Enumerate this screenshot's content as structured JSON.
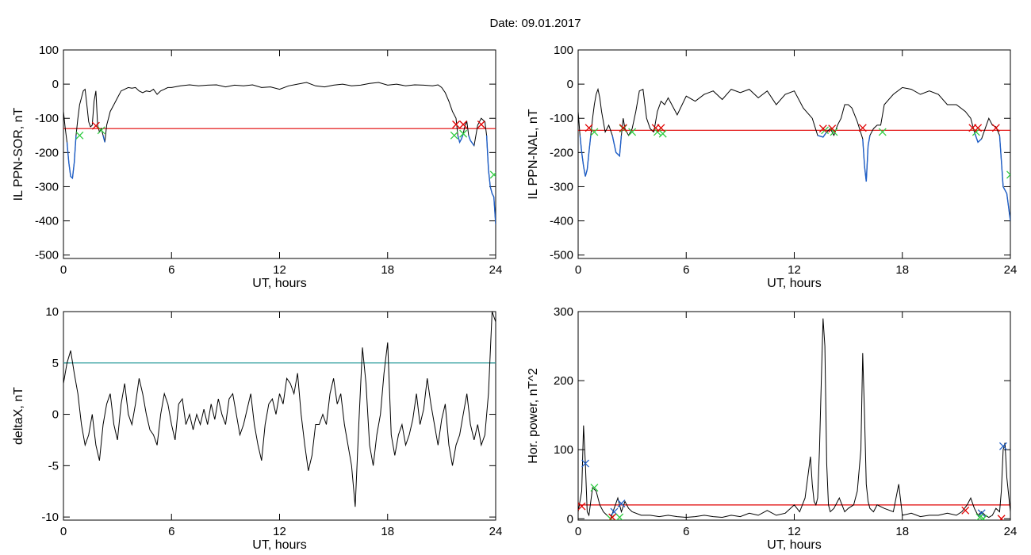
{
  "figure": {
    "title": "Date:  09.01.2017"
  },
  "chart_data": [
    {
      "type": "line",
      "id": "sor",
      "xlabel": "UT, hours",
      "ylabel": "IL PPN-SOR, nT",
      "xlim": [
        0,
        24
      ],
      "ylim": [
        -510,
        100
      ],
      "xticks": [
        0,
        6,
        12,
        18,
        24
      ],
      "yticks": [
        100,
        0,
        -100,
        -200,
        -300,
        -400,
        -500
      ],
      "grid": false,
      "colors": {
        "line": "#000000",
        "substorm": "#1f5fc8",
        "threshold": "#e00000"
      },
      "threshold": -130,
      "x": [
        0,
        0.1,
        0.2,
        0.3,
        0.4,
        0.5,
        0.6,
        0.7,
        0.8,
        0.9,
        1.0,
        1.1,
        1.2,
        1.3,
        1.4,
        1.5,
        1.6,
        1.7,
        1.8,
        1.9,
        2.0,
        2.1,
        2.2,
        2.3,
        2.4,
        2.5,
        2.6,
        2.8,
        3.0,
        3.2,
        3.4,
        3.6,
        3.8,
        4.0,
        4.2,
        4.4,
        4.6,
        4.8,
        5.0,
        5.2,
        5.4,
        5.6,
        5.8,
        6.0,
        6.5,
        7.0,
        7.5,
        8.0,
        8.5,
        9.0,
        9.5,
        10.0,
        10.5,
        11.0,
        11.5,
        12.0,
        12.5,
        13.0,
        13.5,
        14.0,
        14.5,
        15.0,
        15.5,
        16.0,
        16.5,
        17.0,
        17.5,
        18.0,
        18.5,
        19.0,
        19.5,
        20.0,
        20.5,
        20.8,
        21.0,
        21.2,
        21.4,
        21.6,
        21.8,
        21.9,
        22.0,
        22.1,
        22.2,
        22.3,
        22.4,
        22.5,
        22.6,
        22.8,
        23.0,
        23.2,
        23.4,
        23.5,
        23.6,
        23.7,
        23.8,
        23.9,
        24.0
      ],
      "y": [
        -80,
        -130,
        -170,
        -230,
        -270,
        -275,
        -230,
        -150,
        -100,
        -60,
        -40,
        -20,
        -15,
        -60,
        -110,
        -125,
        -120,
        -50,
        -20,
        -120,
        -140,
        -130,
        -150,
        -170,
        -120,
        -100,
        -80,
        -60,
        -40,
        -20,
        -15,
        -10,
        -12,
        -10,
        -20,
        -25,
        -20,
        -22,
        -15,
        -30,
        -20,
        -15,
        -10,
        -10,
        -5,
        -2,
        -5,
        -3,
        -2,
        -8,
        -3,
        -5,
        -2,
        -10,
        -8,
        -15,
        -5,
        0,
        5,
        -5,
        -8,
        -3,
        0,
        -5,
        -3,
        2,
        5,
        -3,
        0,
        -5,
        -2,
        -3,
        -5,
        -2,
        -10,
        -25,
        -50,
        -80,
        -100,
        -150,
        -170,
        -160,
        -145,
        -120,
        -110,
        -150,
        -165,
        -180,
        -120,
        -100,
        -110,
        -150,
        -250,
        -300,
        -320,
        -330,
        -410
      ],
      "markers": {
        "green": [
          [
            0.9,
            -150
          ],
          [
            2.1,
            -135
          ],
          [
            21.7,
            -150
          ],
          [
            22.2,
            -145
          ],
          [
            23.9,
            -265
          ]
        ],
        "red": [
          [
            1.8,
            -122
          ],
          [
            21.8,
            -118
          ],
          [
            22.2,
            -118
          ],
          [
            23.2,
            -118
          ]
        ]
      }
    },
    {
      "type": "line",
      "id": "nal",
      "xlabel": "UT, hours",
      "ylabel": "IL PPN-NAL, nT",
      "xlim": [
        0,
        24
      ],
      "ylim": [
        -510,
        100
      ],
      "xticks": [
        0,
        6,
        12,
        18,
        24
      ],
      "yticks": [
        100,
        0,
        -100,
        -200,
        -300,
        -400,
        -500
      ],
      "grid": false,
      "colors": {
        "line": "#000000",
        "substorm": "#1f5fc8",
        "threshold": "#e00000"
      },
      "threshold": -135,
      "x": [
        0,
        0.1,
        0.2,
        0.3,
        0.4,
        0.5,
        0.6,
        0.7,
        0.8,
        0.9,
        1.0,
        1.1,
        1.2,
        1.3,
        1.5,
        1.7,
        1.9,
        2.1,
        2.3,
        2.4,
        2.5,
        2.6,
        2.8,
        3.0,
        3.2,
        3.4,
        3.6,
        3.8,
        4.0,
        4.2,
        4.4,
        4.6,
        4.8,
        5.0,
        5.5,
        6.0,
        6.5,
        7.0,
        7.5,
        8.0,
        8.5,
        9.0,
        9.5,
        10.0,
        10.5,
        11.0,
        11.5,
        12.0,
        12.5,
        13.0,
        13.3,
        13.6,
        13.8,
        14.0,
        14.2,
        14.4,
        14.6,
        14.8,
        15.0,
        15.2,
        15.5,
        15.8,
        15.9,
        16.0,
        16.1,
        16.2,
        16.4,
        16.6,
        16.8,
        17.0,
        17.5,
        18.0,
        18.5,
        19.0,
        19.5,
        20.0,
        20.5,
        21.0,
        21.5,
        21.8,
        22.0,
        22.2,
        22.4,
        22.6,
        22.8,
        23.0,
        23.2,
        23.4,
        23.6,
        23.8,
        24.0
      ],
      "y": [
        -80,
        -150,
        -200,
        -240,
        -270,
        -250,
        -200,
        -150,
        -100,
        -60,
        -30,
        -15,
        -40,
        -80,
        -140,
        -120,
        -150,
        -200,
        -210,
        -150,
        -100,
        -130,
        -150,
        -130,
        -80,
        -20,
        -15,
        -100,
        -130,
        -140,
        -80,
        -50,
        -60,
        -40,
        -90,
        -35,
        -50,
        -30,
        -20,
        -45,
        -15,
        -25,
        -15,
        -40,
        -20,
        -60,
        -30,
        -20,
        -70,
        -100,
        -150,
        -155,
        -140,
        -130,
        -150,
        -120,
        -100,
        -60,
        -60,
        -70,
        -110,
        -160,
        -240,
        -285,
        -180,
        -150,
        -130,
        -120,
        -120,
        -60,
        -30,
        -10,
        -15,
        -30,
        -20,
        -30,
        -60,
        -60,
        -80,
        -100,
        -140,
        -170,
        -160,
        -130,
        -100,
        -120,
        -125,
        -150,
        -300,
        -320,
        -400
      ],
      "markers": {
        "green": [
          [
            0.9,
            -140
          ],
          [
            2.5,
            -130
          ],
          [
            3.0,
            -140
          ],
          [
            4.4,
            -140
          ],
          [
            4.7,
            -145
          ],
          [
            13.7,
            -135
          ],
          [
            14.2,
            -140
          ],
          [
            16.9,
            -140
          ],
          [
            22.1,
            -140
          ],
          [
            24.0,
            -265
          ]
        ],
        "red": [
          [
            0.6,
            -128
          ],
          [
            2.5,
            -128
          ],
          [
            4.3,
            -128
          ],
          [
            4.6,
            -128
          ],
          [
            13.6,
            -130
          ],
          [
            14.1,
            -130
          ],
          [
            15.8,
            -128
          ],
          [
            21.9,
            -128
          ],
          [
            22.2,
            -128
          ],
          [
            23.2,
            -128
          ]
        ]
      }
    },
    {
      "type": "line",
      "id": "deltax",
      "xlabel": "UT, hours",
      "ylabel": "deltaX, nT",
      "xlim": [
        0,
        24
      ],
      "ylim": [
        -10.3,
        10
      ],
      "xticks": [
        0,
        6,
        12,
        18,
        24
      ],
      "yticks": [
        10,
        5,
        0,
        -5,
        -10
      ],
      "grid": false,
      "colors": {
        "line": "#000000",
        "threshold": "#2e9e9e"
      },
      "threshold": 5,
      "x": [
        0,
        0.2,
        0.4,
        0.6,
        0.8,
        1.0,
        1.2,
        1.4,
        1.6,
        1.8,
        2.0,
        2.2,
        2.4,
        2.6,
        2.8,
        3.0,
        3.2,
        3.4,
        3.6,
        3.8,
        4.0,
        4.2,
        4.4,
        4.6,
        4.8,
        5.0,
        5.2,
        5.4,
        5.6,
        5.8,
        6.0,
        6.2,
        6.4,
        6.6,
        6.8,
        7.0,
        7.2,
        7.4,
        7.6,
        7.8,
        8.0,
        8.2,
        8.4,
        8.6,
        8.8,
        9.0,
        9.2,
        9.4,
        9.6,
        9.8,
        10.0,
        10.2,
        10.4,
        10.6,
        10.8,
        11.0,
        11.2,
        11.4,
        11.6,
        11.8,
        12.0,
        12.2,
        12.4,
        12.6,
        12.8,
        13.0,
        13.2,
        13.4,
        13.6,
        13.8,
        14.0,
        14.2,
        14.4,
        14.6,
        14.8,
        15.0,
        15.2,
        15.4,
        15.6,
        15.8,
        16.0,
        16.2,
        16.4,
        16.6,
        16.8,
        17.0,
        17.2,
        17.4,
        17.6,
        17.8,
        18.0,
        18.2,
        18.4,
        18.6,
        18.8,
        19.0,
        19.2,
        19.4,
        19.6,
        19.8,
        20.0,
        20.2,
        20.4,
        20.6,
        20.8,
        21.0,
        21.2,
        21.4,
        21.6,
        21.8,
        22.0,
        22.2,
        22.4,
        22.6,
        22.8,
        23.0,
        23.2,
        23.4,
        23.6,
        23.8,
        24.0
      ],
      "y": [
        3,
        5,
        6.2,
        4,
        2,
        -1,
        -3,
        -2,
        0,
        -3,
        -4.5,
        -1,
        1,
        2,
        -1,
        -2.5,
        1,
        3,
        0,
        -1,
        1,
        3.5,
        2,
        0,
        -1.5,
        -2,
        -3,
        0,
        2,
        1,
        -1,
        -2.5,
        1,
        1.5,
        -1,
        0,
        -1.5,
        0,
        -1,
        0.5,
        -1,
        1,
        -0.5,
        1.5,
        0,
        -1,
        1.5,
        2,
        0,
        -2,
        -1,
        0.5,
        2,
        -1,
        -3,
        -4.5,
        -1,
        1,
        1.5,
        0,
        2,
        1,
        3.5,
        3,
        2,
        4,
        0,
        -3,
        -5.5,
        -4,
        -1,
        -1,
        0,
        -1,
        2,
        3.5,
        1,
        2,
        -1,
        -3,
        -5,
        -9,
        -1,
        6.5,
        3,
        -3,
        -5,
        -2,
        0,
        4,
        7,
        -2,
        -4,
        -2,
        -1,
        -3,
        -2,
        -0.5,
        2,
        -1,
        0.5,
        3.5,
        1,
        -1,
        -3,
        -0.5,
        1,
        -3,
        -5,
        -3,
        -2,
        0,
        2,
        -1,
        -2.5,
        -1,
        -3,
        -2,
        2,
        10,
        9
      ]
    },
    {
      "type": "line",
      "id": "power",
      "xlabel": "UT, hours",
      "ylabel": "Hor. power, nT^2",
      "xlim": [
        0,
        24
      ],
      "ylim": [
        -2,
        300
      ],
      "xticks": [
        0,
        6,
        12,
        18,
        24
      ],
      "yticks": [
        300,
        200,
        100,
        0
      ],
      "grid": false,
      "colors": {
        "line": "#000000",
        "threshold": "#e00000"
      },
      "threshold": 20,
      "x": [
        0,
        0.2,
        0.3,
        0.4,
        0.5,
        0.6,
        0.8,
        1.0,
        1.2,
        1.4,
        1.6,
        1.8,
        2.0,
        2.2,
        2.4,
        2.6,
        2.8,
        3.0,
        3.5,
        4.0,
        4.5,
        5.0,
        5.5,
        6.0,
        6.5,
        7.0,
        7.5,
        8.0,
        8.5,
        9.0,
        9.5,
        10.0,
        10.5,
        11.0,
        11.5,
        12.0,
        12.3,
        12.6,
        12.9,
        13.0,
        13.1,
        13.2,
        13.3,
        13.4,
        13.5,
        13.6,
        13.7,
        13.8,
        13.9,
        14.0,
        14.2,
        14.5,
        14.8,
        15.0,
        15.3,
        15.5,
        15.7,
        15.8,
        15.9,
        16.0,
        16.1,
        16.2,
        16.4,
        16.6,
        17.0,
        17.5,
        17.8,
        18.0,
        18.5,
        19.0,
        19.5,
        20.0,
        20.5,
        21.0,
        21.3,
        21.6,
        21.8,
        22.0,
        22.2,
        22.4,
        22.6,
        22.8,
        23.0,
        23.2,
        23.4,
        23.5,
        23.6,
        23.7,
        23.8,
        24.0
      ],
      "y": [
        10,
        40,
        135,
        80,
        10,
        5,
        45,
        40,
        20,
        10,
        5,
        0,
        15,
        30,
        10,
        25,
        15,
        10,
        5,
        5,
        3,
        5,
        3,
        2,
        3,
        5,
        3,
        2,
        5,
        3,
        8,
        5,
        12,
        5,
        8,
        20,
        10,
        30,
        90,
        50,
        25,
        20,
        30,
        100,
        200,
        290,
        250,
        80,
        20,
        10,
        15,
        30,
        10,
        15,
        20,
        40,
        100,
        240,
        150,
        50,
        25,
        15,
        10,
        20,
        15,
        10,
        50,
        5,
        8,
        3,
        5,
        5,
        8,
        5,
        10,
        20,
        30,
        15,
        5,
        10,
        5,
        2,
        5,
        15,
        10,
        40,
        100,
        110,
        60,
        10
      ],
      "markers": {
        "blue": [
          [
            0.4,
            80
          ],
          [
            2.0,
            10
          ],
          [
            2.4,
            22
          ],
          [
            22.4,
            8
          ],
          [
            23.6,
            105
          ]
        ],
        "green": [
          [
            0.9,
            45
          ],
          [
            1.8,
            0
          ],
          [
            2.3,
            2
          ],
          [
            22.3,
            2
          ],
          [
            22.5,
            0
          ]
        ],
        "red": [
          [
            0.2,
            18
          ],
          [
            1.9,
            2
          ],
          [
            21.5,
            12
          ],
          [
            23.5,
            0
          ]
        ]
      }
    }
  ]
}
